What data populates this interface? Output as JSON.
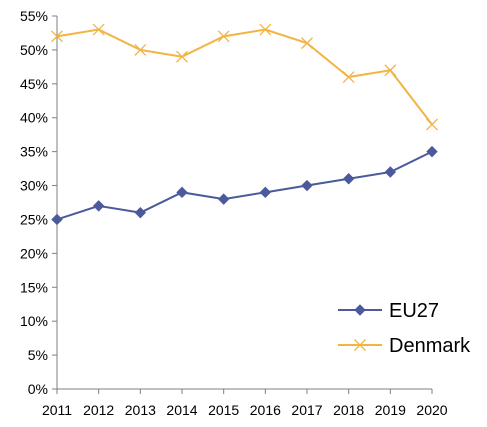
{
  "chart_data": {
    "type": "line",
    "title": "",
    "xlabel": "",
    "ylabel": "",
    "x": [
      "2011",
      "2012",
      "2013",
      "2014",
      "2015",
      "2016",
      "2017",
      "2018",
      "2019",
      "2020"
    ],
    "ylim": [
      0,
      0.55
    ],
    "y_ticks": [
      0,
      0.05,
      0.1,
      0.15,
      0.2,
      0.25,
      0.3,
      0.35,
      0.4,
      0.45,
      0.5,
      0.55
    ],
    "y_tick_labels": [
      "0%",
      "5%",
      "10%",
      "15%",
      "20%",
      "25%",
      "30%",
      "35%",
      "40%",
      "45%",
      "50%",
      "55%"
    ],
    "grid": false,
    "legend_position": "bottom-right",
    "series": [
      {
        "name": "EU27",
        "marker": "diamond",
        "color": "#4a5a9c",
        "values": [
          0.25,
          0.27,
          0.26,
          0.29,
          0.28,
          0.29,
          0.3,
          0.31,
          0.32,
          0.35
        ]
      },
      {
        "name": "Denmark",
        "marker": "x",
        "color": "#f2b443",
        "values": [
          0.52,
          0.53,
          0.5,
          0.49,
          0.52,
          0.53,
          0.51,
          0.46,
          0.47,
          0.39
        ]
      }
    ]
  }
}
